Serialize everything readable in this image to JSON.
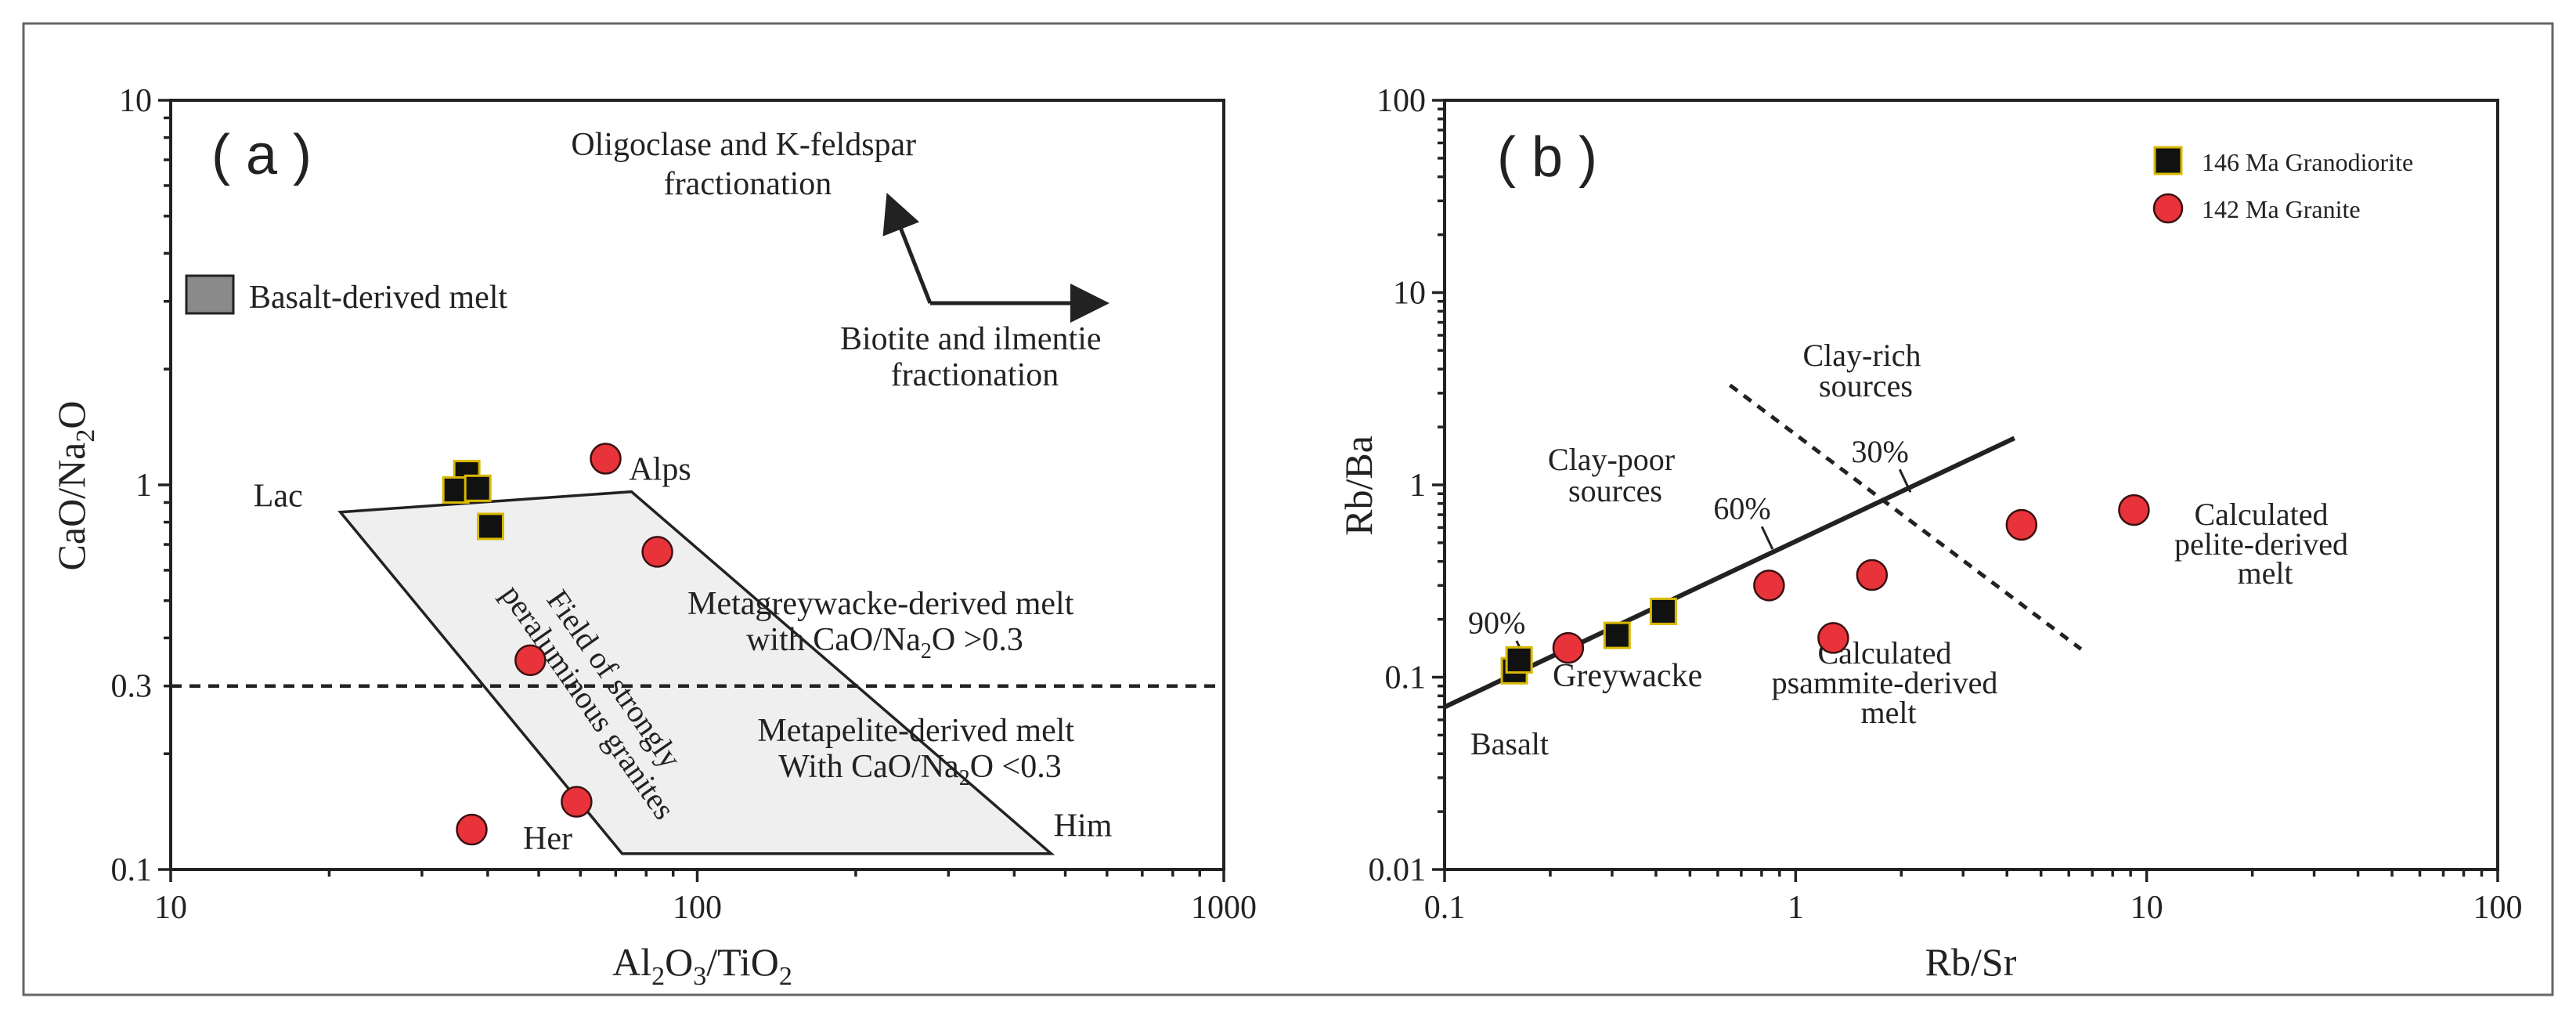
{
  "chart_data": [
    {
      "type": "scatter",
      "panel_label": "( a )",
      "xscale": "log",
      "yscale": "log",
      "xlim": [
        10,
        1000
      ],
      "ylim": [
        0.1,
        10
      ],
      "xlabel_parts": [
        "Al",
        "2",
        "O",
        "3",
        "/TiO",
        "2"
      ],
      "ylabel_parts": [
        "CaO/Na",
        "2",
        "O"
      ],
      "xticks": [
        {
          "value": 10,
          "label": "10"
        },
        {
          "value": 100,
          "label": "100"
        },
        {
          "value": 1000,
          "label": "1000"
        }
      ],
      "yticks": [
        {
          "value": 0.1,
          "label": "0.1"
        },
        {
          "value": 0.3,
          "label": "0.3"
        },
        {
          "value": 1,
          "label": "1"
        },
        {
          "value": 10,
          "label": "10"
        }
      ],
      "field": {
        "polygon": [
          [
            21,
            0.85
          ],
          [
            75,
            0.96
          ],
          [
            470,
            0.11
          ],
          [
            72,
            0.11
          ]
        ],
        "label_lines": [
          "Field of strongly",
          "peraluminous granites"
        ]
      },
      "vertex_labels": [
        {
          "text": "Lac",
          "x": 16,
          "y": 0.88
        },
        {
          "text": "Alps",
          "x": 85,
          "y": 1.03
        },
        {
          "text": "Him",
          "x": 540,
          "y": 0.122
        },
        {
          "text": "Her",
          "x": 52,
          "y": 0.113
        }
      ],
      "ref_line": {
        "y": 0.3,
        "label": "0.3"
      },
      "legend": {
        "label": "Basalt-derived melt"
      },
      "annotations": [
        {
          "lines": [
            "Oligoclase and K-feldspar",
            "fractionation"
          ]
        },
        {
          "lines": [
            "Biotite and ilmentie",
            "fractionation"
          ]
        }
      ],
      "region_labels": [
        {
          "line1": "Metagreywacke-derived melt",
          "line2_parts": [
            "with CaO/Na",
            "2",
            "O >0.3"
          ]
        },
        {
          "line1": "Metapelite-derived melt",
          "line2_parts": [
            "With CaO/Na",
            "2",
            "O <0.3"
          ]
        }
      ],
      "series": [
        {
          "name": "146 Ma Granodiorite",
          "marker": "square",
          "color": "#111111",
          "edge": "#d8b800",
          "points": [
            [
              36.5,
              1.07
            ],
            [
              34.8,
              0.97
            ],
            [
              38.3,
              0.98
            ],
            [
              40.5,
              0.78
            ]
          ]
        },
        {
          "name": "142 Ma Granite",
          "marker": "circle",
          "color": "#e8333a",
          "edge": "#3a1010",
          "points": [
            [
              67,
              1.17
            ],
            [
              84,
              0.67
            ],
            [
              48.2,
              0.35
            ],
            [
              37.3,
              0.127
            ],
            [
              59,
              0.15
            ]
          ]
        }
      ]
    },
    {
      "type": "scatter",
      "panel_label": "( b )",
      "xscale": "log",
      "yscale": "log",
      "xlim": [
        0.1,
        100
      ],
      "ylim": [
        0.01,
        100
      ],
      "xlabel": "Rb/Sr",
      "ylabel": "Rb/Ba",
      "xticks": [
        {
          "value": 0.1,
          "label": "0.1"
        },
        {
          "value": 1,
          "label": "1"
        },
        {
          "value": 10,
          "label": "10"
        },
        {
          "value": 100,
          "label": "100"
        }
      ],
      "yticks": [
        {
          "value": 0.01,
          "label": "0.01"
        },
        {
          "value": 0.1,
          "label": "0.1"
        },
        {
          "value": 1,
          "label": "1"
        },
        {
          "value": 10,
          "label": "10"
        },
        {
          "value": 100,
          "label": "100"
        }
      ],
      "mixing_line": {
        "x": [
          0.1,
          4.2
        ],
        "y": [
          0.07,
          1.75
        ]
      },
      "divider_line": {
        "x": [
          0.65,
          6.5
        ],
        "y": [
          3.3,
          0.14
        ]
      },
      "mixing_ticks": [
        {
          "label": "90%",
          "x": 0.166,
          "y": 0.135
        },
        {
          "label": "60%",
          "x": 0.83,
          "y": 0.53
        },
        {
          "label": "30%",
          "x": 2.05,
          "y": 1.05
        }
      ],
      "text_labels": [
        {
          "lines": [
            "Clay-rich",
            "sources"
          ]
        },
        {
          "lines": [
            "Clay-poor",
            "sources"
          ]
        },
        {
          "lines": [
            "Greywacke"
          ]
        },
        {
          "lines": [
            "Basalt"
          ]
        },
        {
          "lines": [
            "Calculated",
            "psammite-derived",
            "melt"
          ]
        },
        {
          "lines": [
            "Calculated",
            "pelite-derived",
            "melt"
          ]
        }
      ],
      "legend": [
        {
          "label": "146 Ma Granodiorite",
          "marker": "square"
        },
        {
          "label": "142 Ma Granite",
          "marker": "circle"
        }
      ],
      "series": [
        {
          "name": "146 Ma Granodiorite",
          "marker": "square",
          "color": "#111111",
          "edge": "#d8b800",
          "points": [
            [
              0.158,
              0.108
            ],
            [
              0.163,
              0.123
            ],
            [
              0.31,
              0.165
            ],
            [
              0.42,
              0.22
            ]
          ]
        },
        {
          "name": "142 Ma Granite",
          "marker": "circle",
          "color": "#e8333a",
          "edge": "#3a1010",
          "points": [
            [
              0.225,
              0.142
            ],
            [
              0.84,
              0.3
            ],
            [
              1.28,
              0.16
            ],
            [
              1.65,
              0.34
            ],
            [
              4.4,
              0.62
            ],
            [
              9.2,
              0.74
            ]
          ]
        }
      ]
    }
  ]
}
